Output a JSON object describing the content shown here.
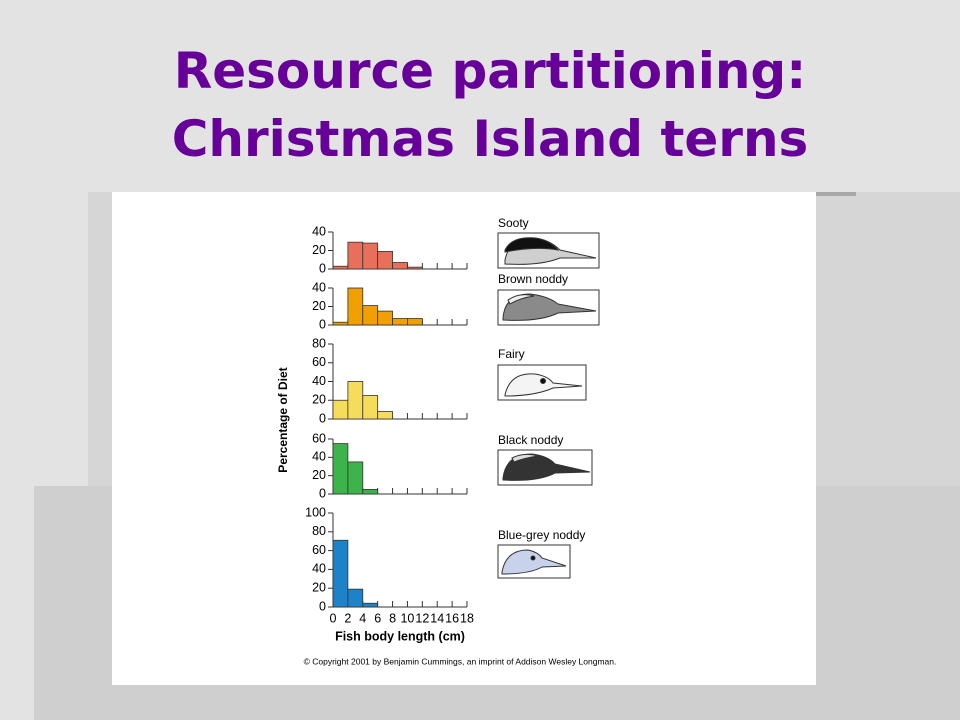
{
  "slide": {
    "title": [
      "Resource partitioning:",
      "Christmas Island terns"
    ]
  },
  "figure": {
    "ylabel": "Percentage of Diet",
    "xlabel": "Fish body length (cm)",
    "credit": "© Copyright 2001 by Benjamin Cummings, an imprint of Addison Wesley Longman."
  },
  "chart_data": [
    {
      "type": "histogram",
      "name": "Sooty",
      "color": "#e8705a",
      "bins": [
        0,
        2,
        4,
        6,
        8,
        10,
        12,
        14,
        16,
        18
      ],
      "values": [
        3,
        29,
        28,
        19,
        7,
        2,
        0,
        0,
        0
      ],
      "xlim": [
        0,
        18
      ],
      "ylim": [
        0,
        40
      ],
      "yticks": [
        0,
        20,
        40
      ]
    },
    {
      "type": "histogram",
      "name": "Brown noddy",
      "color": "#f0a000",
      "bins": [
        0,
        2,
        4,
        6,
        8,
        10,
        12,
        14,
        16,
        18
      ],
      "values": [
        3,
        40,
        21,
        15,
        7,
        7,
        0,
        0,
        0
      ],
      "xlim": [
        0,
        18
      ],
      "ylim": [
        0,
        40
      ],
      "yticks": [
        0,
        20,
        40
      ]
    },
    {
      "type": "histogram",
      "name": "Fairy",
      "color": "#f5dc5a",
      "bins": [
        0,
        2,
        4,
        6,
        8,
        10,
        12,
        14,
        16,
        18
      ],
      "values": [
        20,
        40,
        25,
        8,
        0,
        0,
        0,
        0,
        0
      ],
      "xlim": [
        0,
        18
      ],
      "ylim": [
        0,
        80
      ],
      "yticks": [
        0,
        20,
        40,
        60,
        80
      ]
    },
    {
      "type": "histogram",
      "name": "Black noddy",
      "color": "#3cb44b",
      "bins": [
        0,
        2,
        4,
        6,
        8,
        10,
        12,
        14,
        16,
        18
      ],
      "values": [
        55,
        35,
        5,
        0,
        0,
        0,
        0,
        0,
        0
      ],
      "xlim": [
        0,
        18
      ],
      "ylim": [
        0,
        60
      ],
      "yticks": [
        0,
        20,
        40,
        60
      ]
    },
    {
      "type": "histogram",
      "name": "Blue-grey noddy",
      "color": "#1e82c8",
      "bins": [
        0,
        2,
        4,
        6,
        8,
        10,
        12,
        14,
        16,
        18
      ],
      "values": [
        71,
        19,
        4,
        0,
        0,
        0,
        0,
        0,
        0
      ],
      "xlim": [
        0,
        18
      ],
      "ylim": [
        0,
        100
      ],
      "yticks": [
        0,
        20,
        40,
        60,
        80,
        100
      ],
      "xticks": [
        0,
        2,
        4,
        6,
        8,
        10,
        12,
        14,
        16,
        18
      ]
    }
  ]
}
